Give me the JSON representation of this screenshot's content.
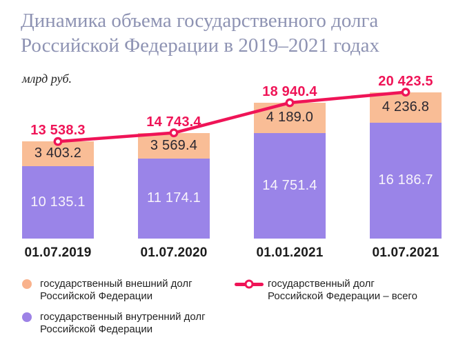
{
  "title": {
    "line1": "Динамика объема государственного долга",
    "line2": "Российской Федерации в 2019–2021 годах"
  },
  "unit_label": "млрд руб.",
  "colors": {
    "title": "#8e93b3",
    "internal_debt": "#9a84e8",
    "external_debt": "#f9bd96",
    "total_line": "#ef1457",
    "label_on_purple": "#f8f4fb",
    "label_on_peach": "#2a2730",
    "axis_text": "#1b1b1b",
    "background": "#ffffff"
  },
  "chart_data": {
    "type": "bar",
    "subtype": "stacked-bars-with-total-line",
    "title": "Динамика объема государственного долга Российской Федерации в 2019–2021 годах",
    "xlabel": "",
    "ylabel": "млрд руб.",
    "ylim": [
      0,
      21000
    ],
    "grid": false,
    "legend_position": "bottom",
    "categories": [
      "01.07.2019",
      "01.07.2020",
      "01.01.2021",
      "01.07.2021"
    ],
    "series": [
      {
        "id": "internal",
        "type": "bar",
        "name": "государственный внутренний долг Российской Федерации",
        "color": "#9a84e8",
        "values": [
          10135.1,
          11174.1,
          14751.4,
          16186.7
        ],
        "labels": [
          "10 135.1",
          "11 174.1",
          "14 751.4",
          "16 186.7"
        ],
        "label_color": "#f8f4fb"
      },
      {
        "id": "external",
        "type": "bar",
        "name": "государственный внешний долг Российской Федерации",
        "color": "#f9bd96",
        "values": [
          3403.2,
          3569.4,
          4189.0,
          4236.8
        ],
        "labels": [
          "3 403.2",
          "3 569.4",
          "4 189.0",
          "4 236.8"
        ],
        "label_color": "#2a2730"
      },
      {
        "id": "total",
        "type": "line",
        "name": "государственный долг Российской Федерации – всего",
        "color": "#ef1457",
        "marker": "open-circle",
        "values": [
          13538.3,
          14743.4,
          18940.4,
          20423.5
        ],
        "labels": [
          "13 538.3",
          "14 743.4",
          "18 940.4",
          "20 423.5"
        ]
      }
    ]
  },
  "legend": {
    "items": [
      {
        "id": "external",
        "swatch": "circle",
        "color": "#f9b28c",
        "line1": "государственный внешний долг",
        "line2": "Российской Федерации"
      },
      {
        "id": "internal",
        "swatch": "circle",
        "color": "#9d82e6",
        "line1": "государственный внутренний долг",
        "line2": "Российской Федерации"
      },
      {
        "id": "total",
        "swatch": "line-marker",
        "color": "#ef1457",
        "line1": "государственный долг",
        "line2": "Российской Федерации – всего"
      }
    ]
  }
}
